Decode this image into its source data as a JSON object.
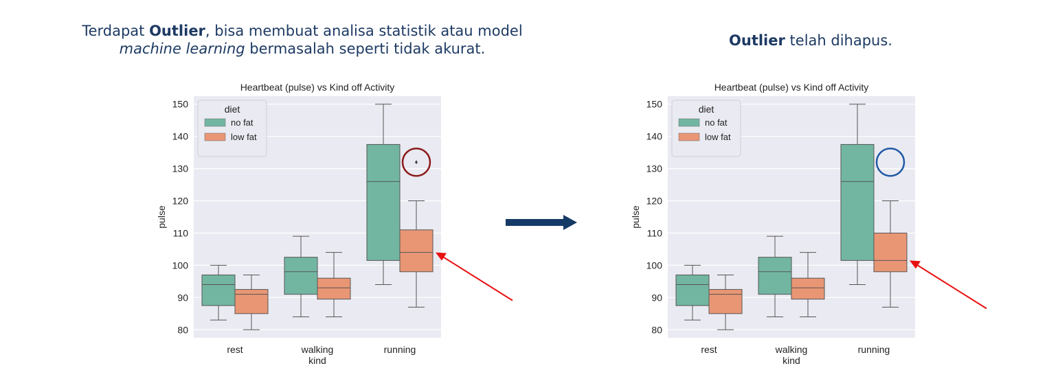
{
  "captions": {
    "left_pre": "Terdapat ",
    "left_bold": "Outlier",
    "left_mid": ", bisa membuat analisa statistik atau model",
    "left_italic": "machine learning",
    "left_post": " bermasalah seperti tidak akurat.",
    "right_bold": "Outlier",
    "right_post": " telah dihapus."
  },
  "colors": {
    "no_fat": "#72b6a1",
    "low_fat": "#e99675",
    "plot_bg": "#eaeaf2",
    "outlier_circle_before": "#8b1a1a",
    "outlier_circle_after": "#1f5aa6",
    "pointer_arrow": "#e81010",
    "transition_arrow": "#163a66"
  },
  "chart_data": [
    {
      "type": "box",
      "title": "Heartbeat (pulse) vs Kind off Activity",
      "xlabel": "kind",
      "ylabel": "pulse",
      "categories": [
        "rest",
        "walking",
        "running"
      ],
      "ylim": [
        77.5,
        152.5
      ],
      "yticks": [
        80,
        90,
        100,
        110,
        120,
        130,
        140,
        150
      ],
      "grid": true,
      "legend": {
        "title": "diet",
        "placement": "top-left",
        "entries": [
          "no fat",
          "low fat"
        ]
      },
      "series": [
        {
          "name": "no fat",
          "boxes": [
            {
              "whislo": 83,
              "q1": 87.5,
              "med": 94,
              "q3": 97,
              "whishi": 100
            },
            {
              "whislo": 84,
              "q1": 91,
              "med": 98,
              "q3": 102.5,
              "whishi": 109
            },
            {
              "whislo": 94,
              "q1": 101.5,
              "med": 126,
              "q3": 137.5,
              "whishi": 150
            }
          ]
        },
        {
          "name": "low fat",
          "boxes": [
            {
              "whislo": 80,
              "q1": 85,
              "med": 91,
              "q3": 92.5,
              "whishi": 97
            },
            {
              "whislo": 84,
              "q1": 89.5,
              "med": 93,
              "q3": 96,
              "whishi": 104
            },
            {
              "whislo": 87,
              "q1": 98,
              "med": 104,
              "q3": 111,
              "whishi": 120,
              "fliers": [
                132
              ]
            }
          ]
        }
      ],
      "annotation": {
        "type": "circle",
        "category": "running",
        "y": 132,
        "style": "before"
      }
    },
    {
      "type": "box",
      "title": "Heartbeat (pulse) vs Kind off Activity",
      "xlabel": "kind",
      "ylabel": "pulse",
      "categories": [
        "rest",
        "walking",
        "running"
      ],
      "ylim": [
        77.5,
        152.5
      ],
      "yticks": [
        80,
        90,
        100,
        110,
        120,
        130,
        140,
        150
      ],
      "grid": true,
      "legend": {
        "title": "diet",
        "placement": "top-left",
        "entries": [
          "no fat",
          "low fat"
        ]
      },
      "series": [
        {
          "name": "no fat",
          "boxes": [
            {
              "whislo": 83,
              "q1": 87.5,
              "med": 94,
              "q3": 97,
              "whishi": 100
            },
            {
              "whislo": 84,
              "q1": 91,
              "med": 98,
              "q3": 102.5,
              "whishi": 109
            },
            {
              "whislo": 94,
              "q1": 101.5,
              "med": 126,
              "q3": 137.5,
              "whishi": 150
            }
          ]
        },
        {
          "name": "low fat",
          "boxes": [
            {
              "whislo": 80,
              "q1": 85,
              "med": 91,
              "q3": 92.5,
              "whishi": 97
            },
            {
              "whislo": 84,
              "q1": 89.5,
              "med": 93,
              "q3": 96,
              "whishi": 104
            },
            {
              "whislo": 87,
              "q1": 98,
              "med": 101.5,
              "q3": 110,
              "whishi": 120
            }
          ]
        }
      ],
      "annotation": {
        "type": "circle",
        "category": "running",
        "y": 132,
        "style": "after"
      }
    }
  ]
}
